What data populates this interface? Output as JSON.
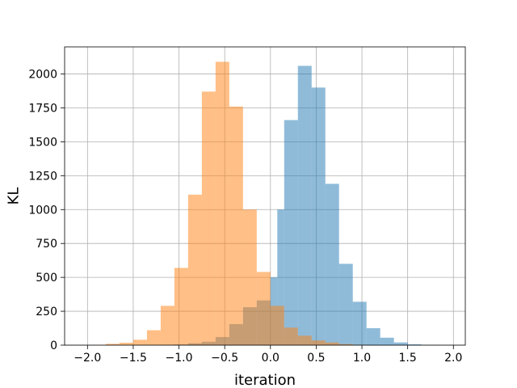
{
  "chart_data": {
    "type": "bar",
    "title": "",
    "xlabel": "iteration",
    "ylabel": "KL",
    "xlim": [
      -2.25,
      2.13
    ],
    "ylim": [
      0,
      2200
    ],
    "grid": true,
    "x_ticks": [
      -2.0,
      -1.5,
      -1.0,
      -0.5,
      0.0,
      0.5,
      1.0,
      1.5,
      2.0
    ],
    "x_tick_labels": [
      "−2.0",
      "−1.5",
      "−1.0",
      "−0.5",
      "0.0",
      "0.5",
      "1.0",
      "1.5",
      "2.0"
    ],
    "y_ticks": [
      0,
      250,
      500,
      750,
      1000,
      1250,
      1500,
      1750,
      2000
    ],
    "y_tick_labels": [
      "0",
      "250",
      "500",
      "750",
      "1000",
      "1250",
      "1500",
      "1750",
      "2000"
    ],
    "series": [
      {
        "color": "#1f77b4",
        "opacity": 0.5,
        "bin_edges": [
          -1.2,
          -1.05,
          -0.9,
          -0.75,
          -0.6,
          -0.45,
          -0.3,
          -0.15,
          0.0,
          0.075,
          0.15,
          0.3,
          0.45,
          0.6,
          0.75,
          0.9,
          1.05,
          1.2,
          1.35,
          1.5,
          1.65,
          1.8
        ],
        "counts": [
          2,
          5,
          14,
          25,
          60,
          155,
          280,
          330,
          500,
          1000,
          1660,
          2060,
          1900,
          1190,
          600,
          320,
          125,
          55,
          20,
          6,
          2
        ]
      },
      {
        "color": "#ff7f0e",
        "opacity": 0.5,
        "bin_edges": [
          -1.95,
          -1.8,
          -1.65,
          -1.5,
          -1.35,
          -1.2,
          -1.05,
          -0.9,
          -0.75,
          -0.6,
          -0.45,
          -0.3,
          -0.15,
          0.0,
          0.15,
          0.3,
          0.45,
          0.6,
          0.75,
          0.9,
          1.05
        ],
        "counts": [
          2,
          10,
          18,
          40,
          110,
          290,
          570,
          1110,
          1870,
          2090,
          1760,
          1000,
          540,
          290,
          130,
          70,
          35,
          20,
          8,
          2
        ]
      }
    ]
  }
}
